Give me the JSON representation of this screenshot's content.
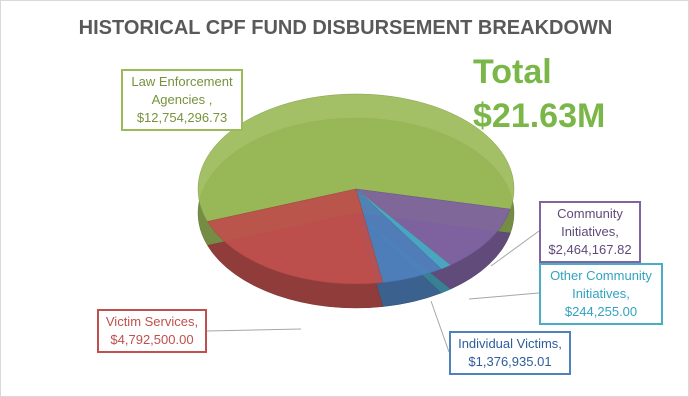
{
  "chart_data": {
    "type": "pie",
    "title": "HISTORICAL CPF FUND DISBURSEMENT BREAKDOWN",
    "total_label": "Total",
    "total_text": "$21.63M",
    "categories": [
      "Law Enforcement Agencies ,",
      "Community Initiatives,",
      "Other Community Initiatives,",
      "Individual Victims,",
      "Victim Services,"
    ],
    "values": [
      12754296.73,
      2464167.82,
      244255.0,
      1376935.01,
      4792500.0
    ],
    "value_labels": [
      "$12,754,296.73",
      "$2,464,167.82",
      "$244,255.00",
      "$1,376,935.01",
      "$4,792,500.00"
    ],
    "colors": [
      "#9bbb59",
      "#8064a2",
      "#4bacc6",
      "#4f81bd",
      "#c0504d"
    ]
  }
}
